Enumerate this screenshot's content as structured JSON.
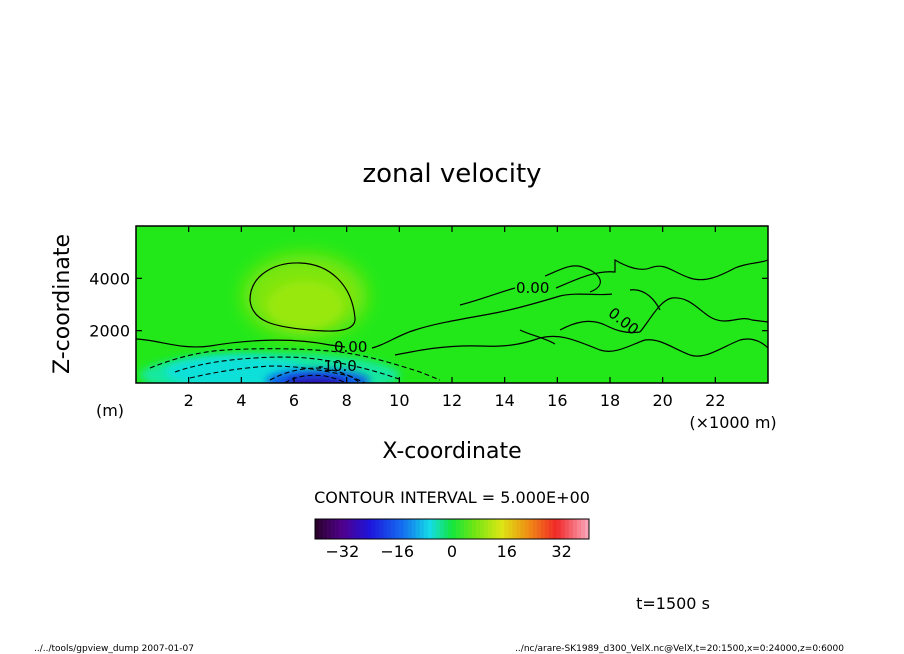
{
  "chart_data": {
    "type": "heatmap",
    "title": "zonal velocity",
    "xlabel": "X-coordinate",
    "ylabel": "Z-coordinate",
    "x_unit_label": "(×1000 m)",
    "y_unit_label": "(m)",
    "xlim": [
      0,
      24
    ],
    "ylim": [
      0,
      6000
    ],
    "x_ticks": [
      2,
      4,
      6,
      8,
      10,
      12,
      14,
      16,
      18,
      20,
      22
    ],
    "y_ticks": [
      2000,
      4000
    ],
    "contour_labels": [
      {
        "text": "0.00",
        "x": 8.2,
        "z": 1400
      },
      {
        "text": "-10.0",
        "x": 7.3,
        "z": 680
      },
      {
        "text": "0.00",
        "x": 15.0,
        "z": 3700
      },
      {
        "text": "0.00",
        "x": 18.3,
        "z": 2000
      }
    ],
    "contour_interval_text": "CONTOUR INTERVAL = 5.000E+00",
    "colorbar": {
      "range": [
        -40,
        40
      ],
      "ticks": [
        -32,
        -16,
        0,
        16,
        32
      ]
    },
    "features": [
      {
        "kind": "positive-max",
        "x": 6.5,
        "z": 2800,
        "value": 5
      },
      {
        "kind": "negative-min",
        "x": 6.8,
        "z": 100,
        "value": -35
      },
      {
        "kind": "negative-lobe",
        "x": 4.0,
        "z": 600,
        "value": -15
      }
    ]
  },
  "footer": {
    "time_label": "t=1500 s",
    "left_note": "../../tools/gpview_dump  2007-01-07",
    "right_note": "../nc/arare-SK1989_d300_VelX.nc@VelX,t=20:1500,x=0:24000,z=0:6000"
  }
}
